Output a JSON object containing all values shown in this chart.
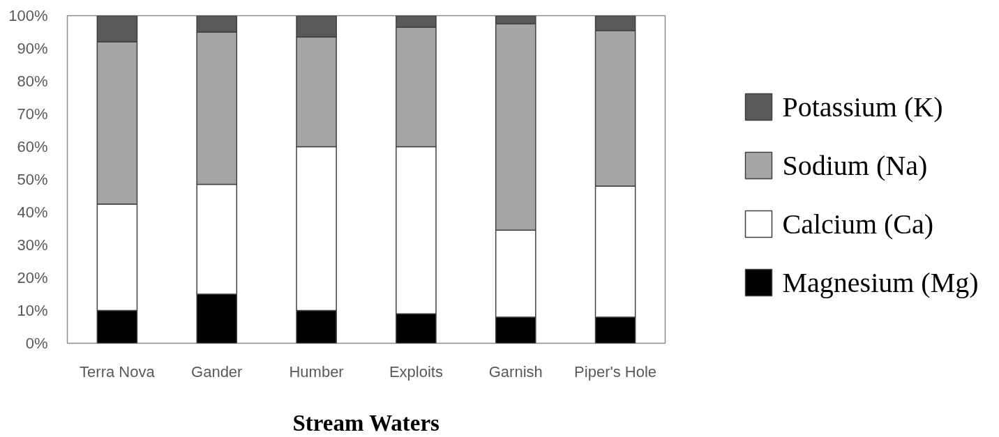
{
  "chart_data": {
    "type": "bar",
    "xlabel": "Stream Waters",
    "categories": [
      "Terra Nova",
      "Gander",
      "Humber",
      "Exploits",
      "Garnish",
      "Piper's Hole"
    ],
    "stacked": true,
    "series": [
      {
        "name": "Magnesium  (Mg)",
        "color": "#000000",
        "values": [
          10,
          15,
          10,
          9,
          8,
          8
        ]
      },
      {
        "name": "Calcium  (Ca)",
        "color": "#ffffff",
        "values": [
          32.5,
          33.5,
          50,
          51,
          26.5,
          40
        ]
      },
      {
        "name": "Sodium (Na)",
        "color": "#a6a6a6",
        "values": [
          49.5,
          46.5,
          33.5,
          36.5,
          63,
          47.5
        ]
      },
      {
        "name": "Potassium (K)",
        "color": "#595959",
        "values": [
          8,
          5,
          6.5,
          3.5,
          2.5,
          4.5
        ]
      }
    ],
    "ylim": [
      0,
      100
    ],
    "yticks": [
      {
        "value": 0,
        "label": "0%"
      },
      {
        "value": 10,
        "label": "10%"
      },
      {
        "value": 20,
        "label": "20%"
      },
      {
        "value": 30,
        "label": "30%"
      },
      {
        "value": 40,
        "label": "40%"
      },
      {
        "value": 50,
        "label": "50%"
      },
      {
        "value": 60,
        "label": "60%"
      },
      {
        "value": 70,
        "label": "70%"
      },
      {
        "value": 80,
        "label": "80%"
      },
      {
        "value": 90,
        "label": "90%"
      },
      {
        "value": 100,
        "label": "100%"
      }
    ],
    "legend": "right"
  }
}
